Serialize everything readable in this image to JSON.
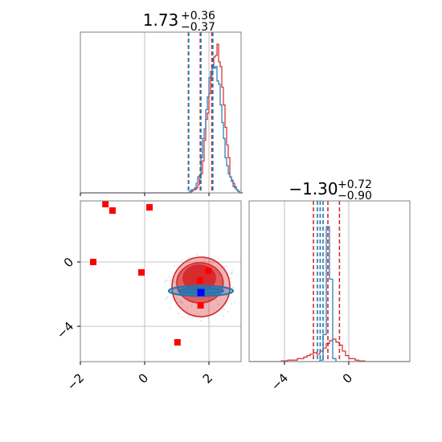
{
  "chart_data": [
    {
      "type": "histogram",
      "panel": "marginal-1",
      "title": {
        "value": "1.73",
        "plus": "+0.36",
        "minus": "−0.37"
      },
      "xlim": [
        -2,
        3
      ],
      "grid": true,
      "bin_edges_start": -2.0,
      "bin_width": 0.05,
      "series": [
        {
          "color": "#d62728",
          "counts": [
            0,
            0,
            0,
            0,
            0,
            0,
            0,
            0,
            0,
            0,
            0,
            0,
            0,
            0,
            0,
            0,
            0,
            0,
            0,
            0,
            0,
            0,
            0,
            0,
            0,
            0,
            0,
            0,
            0,
            0,
            0,
            0,
            0,
            0,
            0,
            0,
            0,
            0,
            0,
            0,
            0,
            0,
            0,
            0,
            0,
            0,
            0,
            0,
            0,
            0,
            0,
            0,
            0,
            0,
            0,
            0,
            0,
            0,
            0,
            0,
            0,
            0,
            0,
            0,
            0,
            0,
            0,
            0,
            0,
            0.01,
            0.02,
            0.02,
            0.03,
            0.05,
            0.09,
            0.12,
            0.2,
            0.33,
            0.46,
            0.5,
            0.62,
            0.73,
            0.8,
            0.85,
            0.86,
            0.93,
            0.82,
            0.79,
            0.66,
            0.55,
            0.41,
            0.3,
            0.22,
            0.1,
            0.08,
            0.06,
            0.04,
            0.02,
            0.01,
            0,
            0
          ]
        },
        {
          "color": "#1f77b4",
          "counts": [
            0,
            0,
            0,
            0,
            0,
            0,
            0,
            0,
            0,
            0,
            0,
            0,
            0,
            0,
            0,
            0,
            0,
            0,
            0,
            0,
            0,
            0,
            0,
            0,
            0,
            0,
            0,
            0,
            0,
            0,
            0,
            0,
            0,
            0,
            0,
            0,
            0,
            0,
            0,
            0,
            0,
            0,
            0,
            0,
            0,
            0,
            0,
            0,
            0,
            0,
            0,
            0,
            0,
            0,
            0,
            0,
            0,
            0,
            0,
            0,
            0,
            0,
            0,
            0,
            0,
            0,
            0,
            0,
            0.01,
            0.02,
            0.02,
            0.03,
            0.06,
            0.1,
            0.11,
            0.22,
            0.34,
            0.4,
            0.52,
            0.6,
            0.72,
            0.76,
            0.8,
            0.78,
            0.79,
            0.7,
            0.68,
            0.55,
            0.44,
            0.34,
            0.22,
            0.17,
            0.12,
            0.1,
            0.07,
            0.04,
            0.03,
            0.02,
            0.01,
            0,
            0
          ]
        }
      ],
      "quantile_lines": [
        {
          "color": "#d62728",
          "x": [
            1.36,
            1.73,
            2.09
          ]
        },
        {
          "color": "#1f77b4",
          "x": [
            1.37,
            1.75,
            2.12
          ]
        }
      ]
    },
    {
      "type": "scatter",
      "panel": "joint",
      "xlim": [
        -2,
        3
      ],
      "ylim": [
        -6.2,
        3.8
      ],
      "grid": true,
      "points": {
        "color": "#ff0000",
        "marker": "square",
        "x": [
          -1.22,
          -1.0,
          0.15,
          -1.6,
          -0.1,
          1.72,
          1.98,
          1.74,
          1.02
        ],
        "y": [
          3.6,
          3.2,
          3.4,
          0.0,
          -0.65,
          -1.15,
          -0.55,
          -2.7,
          -5.0
        ]
      },
      "truth_point": {
        "color": "#0000ff",
        "x": 1.75,
        "y": -1.9
      },
      "red_contours": [
        {
          "fill": "#d62728",
          "levels": [
            {
              "cx": 1.75,
              "cy": -1.55,
              "rx": 0.9,
              "ry": 1.85
            },
            {
              "cx": 1.72,
              "cy": -1.3,
              "rx": 0.72,
              "ry": 1.25
            },
            {
              "cx": 1.7,
              "cy": -1.0,
              "rx": 0.5,
              "ry": 0.8
            }
          ]
        }
      ],
      "blue_contours": [
        {
          "fill": "#1f77b4",
          "levels": [
            {
              "cx": 1.75,
              "cy": -1.8,
              "rx": 1.0,
              "ry": 0.32
            },
            {
              "cx": 1.75,
              "cy": -1.8,
              "rx": 0.7,
              "ry": 0.18
            }
          ]
        }
      ]
    },
    {
      "type": "histogram",
      "panel": "marginal-2",
      "title": {
        "value": "−1.30",
        "plus": "+0.72",
        "minus": "−0.90"
      },
      "xlim": [
        -6.2,
        3.8
      ],
      "grid": true,
      "bin_edges_start": -6.2,
      "bin_width": 0.2,
      "series": [
        {
          "color": "#d62728",
          "counts": [
            0,
            0,
            0,
            0,
            0,
            0,
            0,
            0,
            0,
            0,
            0.005,
            0.005,
            0.01,
            0.01,
            0.01,
            0.02,
            0.02,
            0.03,
            0.04,
            0.05,
            0.06,
            0.05,
            0.07,
            0.09,
            0.12,
            0.14,
            0.15,
            0.13,
            0.11,
            0.07,
            0.04,
            0.02,
            0.02,
            0.01,
            0.005,
            0.005,
            0,
            0,
            0,
            0,
            0,
            0,
            0,
            0,
            0,
            0,
            0,
            0,
            0,
            0
          ]
        },
        {
          "color": "#1f77b4",
          "counts": [
            0,
            0,
            0,
            0,
            0,
            0,
            0,
            0,
            0,
            0,
            0,
            0,
            0,
            0,
            0,
            0,
            0,
            0,
            0,
            0,
            0,
            0,
            0.01,
            0.18,
            0.9,
            0.55,
            0.02,
            0,
            0,
            0,
            0,
            0,
            0,
            0,
            0,
            0,
            0,
            0,
            0,
            0,
            0,
            0,
            0,
            0,
            0,
            0,
            0,
            0,
            0,
            0
          ]
        }
      ],
      "quantile_lines": [
        {
          "color": "#d62728",
          "x": [
            -2.2,
            -1.3,
            -0.58
          ]
        },
        {
          "color": "#1f77b4",
          "x": [
            -1.95,
            -1.78,
            -1.6
          ]
        }
      ]
    }
  ],
  "axes": {
    "joint_x_ticks": [
      {
        "value": -2,
        "label": "−2"
      },
      {
        "value": 0,
        "label": "0"
      },
      {
        "value": 2,
        "label": "2"
      }
    ],
    "joint_y_ticks": [
      {
        "value": 0,
        "label": "0"
      },
      {
        "value": -4,
        "label": "−4"
      }
    ],
    "marg2_x_ticks": [
      {
        "value": -4,
        "label": "−4"
      },
      {
        "value": 0,
        "label": "0"
      }
    ]
  },
  "colors": {
    "red": "#d62728",
    "blue": "#1f77b4",
    "grid": "#b0b0b0",
    "spine": "#808080",
    "scatter_red": "#ff0000",
    "truth_blue": "#0000ff"
  }
}
